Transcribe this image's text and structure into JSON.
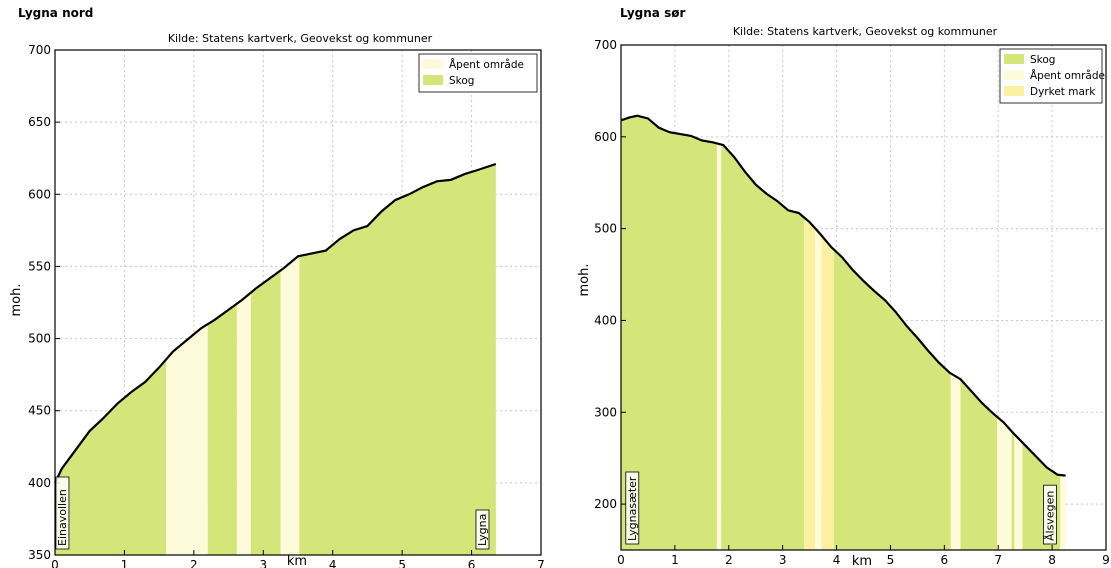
{
  "chart_data": [
    {
      "type": "area",
      "title": "Lygna nord",
      "subtitle": "Kilde: Statens kartverk, Geovekst og kommuner",
      "xlabel": "km",
      "ylabel": "moh.",
      "xlim": [
        0,
        7
      ],
      "ylim": [
        350,
        700
      ],
      "xticks": [
        0,
        1,
        2,
        3,
        4,
        5,
        6,
        7
      ],
      "yticks": [
        350,
        400,
        450,
        500,
        550,
        600,
        650,
        700
      ],
      "grid": true,
      "legend_position": "top-right",
      "legend": [
        {
          "name": "Åpent område",
          "color": "#fdfbd9"
        },
        {
          "name": "Skog",
          "color": "#d4e67a"
        }
      ],
      "profile": [
        [
          0,
          400
        ],
        [
          0.1,
          410
        ],
        [
          0.3,
          423
        ],
        [
          0.5,
          436
        ],
        [
          0.7,
          445
        ],
        [
          0.9,
          455
        ],
        [
          1.1,
          463
        ],
        [
          1.3,
          470
        ],
        [
          1.5,
          480
        ],
        [
          1.7,
          491
        ],
        [
          1.9,
          499
        ],
        [
          2.1,
          507
        ],
        [
          2.3,
          513
        ],
        [
          2.5,
          520
        ],
        [
          2.7,
          527
        ],
        [
          2.9,
          535
        ],
        [
          3.1,
          542
        ],
        [
          3.3,
          549
        ],
        [
          3.5,
          557
        ],
        [
          3.7,
          559
        ],
        [
          3.9,
          561
        ],
        [
          4.1,
          569
        ],
        [
          4.3,
          575
        ],
        [
          4.5,
          578
        ],
        [
          4.7,
          588
        ],
        [
          4.9,
          596
        ],
        [
          5.1,
          600
        ],
        [
          5.3,
          605
        ],
        [
          5.5,
          609
        ],
        [
          5.7,
          610
        ],
        [
          5.9,
          614
        ],
        [
          6.1,
          617
        ],
        [
          6.35,
          621
        ]
      ],
      "segments": [
        {
          "land_cover": "Skog",
          "x0": 0,
          "x1": 1.6
        },
        {
          "land_cover": "Åpent område",
          "x0": 1.6,
          "x1": 2.2
        },
        {
          "land_cover": "Skog",
          "x0": 2.2,
          "x1": 2.62
        },
        {
          "land_cover": "Åpent område",
          "x0": 2.62,
          "x1": 2.82
        },
        {
          "land_cover": "Skog",
          "x0": 2.82,
          "x1": 3.25
        },
        {
          "land_cover": "Åpent område",
          "x0": 3.25,
          "x1": 3.52
        },
        {
          "land_cover": "Skog",
          "x0": 3.52,
          "x1": 6.35
        }
      ],
      "place_labels": [
        {
          "text": "Einavollen",
          "x": 0.1
        },
        {
          "text": "Lygna",
          "x": 6.15
        }
      ]
    },
    {
      "type": "area",
      "title": "Lygna sør",
      "subtitle": "Kilde: Statens kartverk, Geovekst og kommuner",
      "xlabel": "km",
      "ylabel": "moh.",
      "xlim": [
        0,
        9
      ],
      "ylim": [
        150,
        700
      ],
      "xticks": [
        0,
        1,
        2,
        3,
        4,
        5,
        6,
        7,
        8,
        9
      ],
      "yticks": [
        200,
        300,
        400,
        500,
        600,
        700
      ],
      "grid": true,
      "legend_position": "top-right",
      "legend": [
        {
          "name": "Skog",
          "color": "#d4e67a"
        },
        {
          "name": "Åpent område",
          "color": "#fdfbd9"
        },
        {
          "name": "Dyrket mark",
          "color": "#faf0a0"
        }
      ],
      "profile": [
        [
          0,
          618
        ],
        [
          0.15,
          621
        ],
        [
          0.3,
          623
        ],
        [
          0.5,
          620
        ],
        [
          0.7,
          610
        ],
        [
          0.9,
          605
        ],
        [
          1.1,
          603
        ],
        [
          1.3,
          601
        ],
        [
          1.5,
          596
        ],
        [
          1.7,
          594
        ],
        [
          1.9,
          591
        ],
        [
          2.1,
          578
        ],
        [
          2.3,
          562
        ],
        [
          2.5,
          548
        ],
        [
          2.7,
          538
        ],
        [
          2.9,
          530
        ],
        [
          3.1,
          520
        ],
        [
          3.3,
          517
        ],
        [
          3.5,
          507
        ],
        [
          3.7,
          494
        ],
        [
          3.9,
          480
        ],
        [
          4.1,
          469
        ],
        [
          4.3,
          455
        ],
        [
          4.5,
          443
        ],
        [
          4.7,
          432
        ],
        [
          4.9,
          422
        ],
        [
          5.1,
          409
        ],
        [
          5.3,
          394
        ],
        [
          5.5,
          381
        ],
        [
          5.7,
          367
        ],
        [
          5.9,
          354
        ],
        [
          6.1,
          343
        ],
        [
          6.3,
          336
        ],
        [
          6.5,
          323
        ],
        [
          6.7,
          310
        ],
        [
          6.9,
          299
        ],
        [
          7.1,
          289
        ],
        [
          7.3,
          276
        ],
        [
          7.5,
          264
        ],
        [
          7.7,
          252
        ],
        [
          7.9,
          240
        ],
        [
          8.1,
          232
        ],
        [
          8.25,
          231
        ]
      ],
      "segments": [
        {
          "land_cover": "Skog",
          "x0": 0,
          "x1": 1.78
        },
        {
          "land_cover": "Åpent område",
          "x0": 1.78,
          "x1": 1.86
        },
        {
          "land_cover": "Skog",
          "x0": 1.86,
          "x1": 3.4
        },
        {
          "land_cover": "Dyrket mark",
          "x0": 3.4,
          "x1": 3.6
        },
        {
          "land_cover": "Åpent område",
          "x0": 3.6,
          "x1": 3.72
        },
        {
          "land_cover": "Dyrket mark",
          "x0": 3.72,
          "x1": 3.95
        },
        {
          "land_cover": "Skog",
          "x0": 3.95,
          "x1": 6.12
        },
        {
          "land_cover": "Åpent område",
          "x0": 6.12,
          "x1": 6.3
        },
        {
          "land_cover": "Skog",
          "x0": 6.3,
          "x1": 6.98
        },
        {
          "land_cover": "Åpent område",
          "x0": 6.98,
          "x1": 7.25
        },
        {
          "land_cover": "Skog",
          "x0": 7.25,
          "x1": 7.3
        },
        {
          "land_cover": "Åpent område",
          "x0": 7.3,
          "x1": 7.45
        },
        {
          "land_cover": "Skog",
          "x0": 7.45,
          "x1": 8.15
        },
        {
          "land_cover": "Åpent område",
          "x0": 8.15,
          "x1": 8.25
        }
      ],
      "place_labels": [
        {
          "text": "Lygnasæter",
          "x": 0.2
        },
        {
          "text": "Ålsvegen",
          "x": 7.95
        }
      ]
    }
  ]
}
